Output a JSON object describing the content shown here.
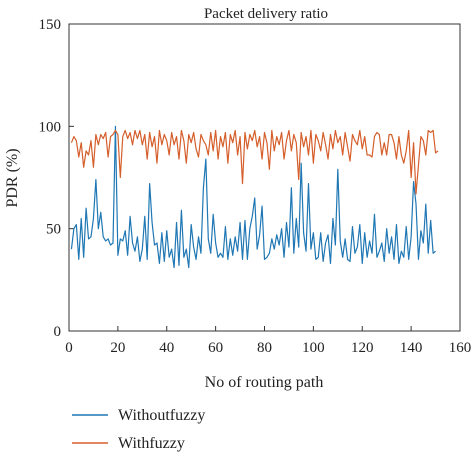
{
  "chart_data": {
    "type": "line",
    "title": "Packet delivery ratio",
    "xlabel": "No of routing path",
    "ylabel": "PDR (%)",
    "xlim": [
      0,
      160
    ],
    "ylim": [
      0,
      150
    ],
    "xticks": [
      0,
      20,
      40,
      60,
      80,
      100,
      120,
      140,
      160
    ],
    "yticks": [
      0,
      50,
      100,
      150
    ],
    "xtick_labels": [
      "0",
      "20",
      "40",
      "60",
      "80",
      "100",
      "120",
      "140",
      "160"
    ],
    "ytick_labels": [
      "0",
      "50",
      "100",
      "150"
    ],
    "grid": false,
    "legend_position": "bottom-left",
    "x_start": 1,
    "series": [
      {
        "name": "Withoutfuzzy",
        "color": "#1f77b4",
        "values": [
          40,
          50,
          52,
          35,
          55,
          36,
          60,
          45,
          46,
          55,
          74,
          50,
          58,
          46,
          44,
          45,
          42,
          43,
          100,
          37,
          45,
          44,
          49,
          37,
          56,
          43,
          39,
          46,
          34,
          40,
          56,
          35,
          72,
          53,
          42,
          43,
          33,
          48,
          34,
          49,
          36,
          40,
          31,
          53,
          32,
          59,
          36,
          40,
          31,
          52,
          41,
          35,
          46,
          38,
          70,
          84,
          45,
          38,
          57,
          43,
          36,
          38,
          36,
          51,
          35,
          45,
          37,
          46,
          39,
          53,
          35,
          54,
          35,
          50,
          56,
          65,
          40,
          47,
          61,
          35,
          36,
          38,
          45,
          40,
          47,
          42,
          50,
          36,
          53,
          41,
          70,
          38,
          55,
          41,
          82,
          48,
          39,
          72,
          40,
          48,
          35,
          36,
          48,
          34,
          43,
          47,
          33,
          55,
          42,
          79,
          44,
          36,
          45,
          35,
          34,
          51,
          38,
          41,
          52,
          33,
          48,
          36,
          44,
          38,
          57,
          36,
          39,
          43,
          34,
          50,
          38,
          46,
          35,
          52,
          33,
          39,
          36,
          51,
          35,
          46,
          73,
          62,
          35,
          49,
          43,
          62,
          38,
          54,
          38,
          39
        ]
      },
      {
        "name": "Withfuzzy",
        "color": "#d55e2b",
        "values": [
          92,
          95,
          93,
          85,
          92,
          80,
          88,
          86,
          93,
          80,
          96,
          91,
          96,
          94,
          97,
          85,
          95,
          96,
          98,
          96,
          75,
          95,
          98,
          94,
          97,
          91,
          98,
          94,
          98,
          91,
          96,
          84,
          97,
          90,
          95,
          82,
          98,
          91,
          96,
          93,
          86,
          97,
          91,
          95,
          84,
          98,
          93,
          82,
          96,
          92,
          97,
          89,
          85,
          96,
          93,
          91,
          86,
          97,
          88,
          98,
          84,
          95,
          90,
          97,
          82,
          96,
          92,
          98,
          86,
          95,
          72,
          97,
          89,
          96,
          93,
          98,
          90,
          95,
          84,
          97,
          92,
          79,
          98,
          88,
          95,
          91,
          97,
          84,
          93,
          98,
          88,
          96,
          92,
          74,
          97,
          90,
          95,
          86,
          98,
          82,
          96,
          93,
          88,
          97,
          91,
          84,
          96,
          89,
          98,
          92,
          95,
          86,
          97,
          90,
          83,
          96,
          93,
          91,
          98,
          89,
          95,
          86,
          86,
          85,
          95,
          97,
          96,
          86,
          92,
          86,
          96,
          96,
          92,
          84,
          95,
          86,
          82,
          88,
          98,
          75,
          92,
          67,
          81,
          95,
          93,
          86,
          98,
          97,
          98,
          87,
          88
        ]
      }
    ]
  }
}
